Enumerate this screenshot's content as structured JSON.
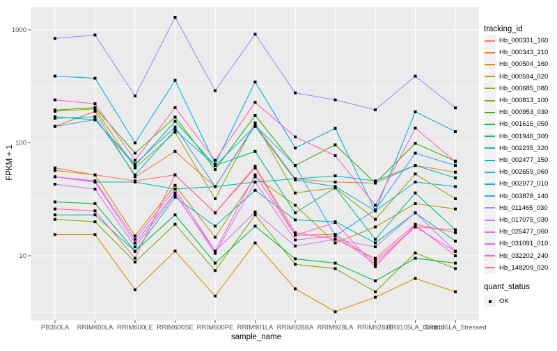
{
  "chart_data": {
    "type": "line",
    "title": "",
    "xlabel": "sample_name",
    "ylabel": "FPKM + 1",
    "y_scale": "log10",
    "y_ticks": [
      10,
      100,
      1000
    ],
    "y_minor_gridlines": [
      3.1623,
      31.623,
      316.23
    ],
    "ylim": [
      3,
      1400
    ],
    "grid": "on",
    "panel_bg": "#EBEBEB",
    "gridline_color": "#FFFFFF",
    "tick_label_color": "#4D4D4D",
    "point_color": "#000000",
    "legend_position": "right",
    "categories": [
      "PB350LA",
      "RRIM600LA",
      "RRIM600LE",
      "RRIM600SE",
      "RRIM600PE",
      "RRIM901LA",
      "RRIM928BA",
      "RRIM928LA",
      "RRIM928LE",
      "RRII105LA_Control",
      "RRII105LA_Stressed"
    ],
    "series": [
      {
        "name": "Hb_000331_160",
        "color": "#F8766D",
        "values": [
          60,
          52,
          46,
          52,
          24,
          60,
          15.2,
          15.5,
          9,
          18,
          17
        ]
      },
      {
        "name": "Hb_000343_210",
        "color": "#EA8331",
        "values": [
          140,
          190,
          50,
          84,
          41,
          145,
          48,
          45,
          44,
          63,
          55
        ]
      },
      {
        "name": "Hb_000504_160",
        "color": "#D89000",
        "values": [
          15.4,
          15.4,
          5,
          11,
          4.4,
          13,
          5.1,
          3.2,
          4.3,
          6.3,
          4.8
        ]
      },
      {
        "name": "Hb_000594_020",
        "color": "#C09B00",
        "values": [
          57,
          52,
          15,
          42,
          14.6,
          50,
          28,
          13,
          18,
          29,
          26
        ]
      },
      {
        "name": "Hb_000685_080",
        "color": "#A3A500",
        "values": [
          190,
          200,
          60,
          124,
          32,
          150,
          36,
          40,
          21,
          53,
          32
        ]
      },
      {
        "name": "Hb_000813_100",
        "color": "#7CAE00",
        "values": [
          21,
          20,
          8.8,
          19,
          7.4,
          23,
          8.4,
          7.7,
          4.8,
          10.6,
          7.7
        ]
      },
      {
        "name": "Hb_000953_030",
        "color": "#39B600",
        "values": [
          195,
          205,
          81,
          169,
          58,
          175,
          63,
          96,
          44,
          99,
          69
        ]
      },
      {
        "name": "Hb_001616_050",
        "color": "#00BB4E",
        "values": [
          30,
          29,
          11,
          23,
          8.6,
          18.3,
          9.4,
          8.6,
          6,
          9.5,
          8.6
        ]
      },
      {
        "name": "Hb_001946_300",
        "color": "#00C087",
        "values": [
          170,
          160,
          63,
          155,
          63,
          84,
          24,
          40,
          14,
          36,
          17
        ]
      },
      {
        "name": "Hb_002235_320",
        "color": "#00C0B2",
        "values": [
          23,
          23,
          10.9,
          33,
          18.3,
          38,
          20.8,
          20,
          13,
          24,
          13.5
        ]
      },
      {
        "name": "Hb_002477_150",
        "color": "#00BFC4",
        "values": [
          50,
          45,
          45,
          39,
          41,
          45,
          48,
          51,
          46,
          63,
          49
        ]
      },
      {
        "name": "Hb_002659_060",
        "color": "#00BAE0",
        "values": [
          165,
          170,
          52,
          130,
          63,
          140,
          47,
          41,
          25,
          45,
          41
        ]
      },
      {
        "name": "Hb_002977_010",
        "color": "#00B0F6",
        "values": [
          390,
          373,
          100,
          357,
          65,
          346,
          90,
          134,
          25,
          188,
          126
        ]
      },
      {
        "name": "Hb_003878_140",
        "color": "#35A2FF",
        "values": [
          140,
          160,
          65,
          138,
          41,
          143,
          63,
          15,
          25.5,
          81,
          63
        ]
      },
      {
        "name": "Hb_011465_030",
        "color": "#9590FF",
        "values": [
          840,
          900,
          260,
          1290,
          290,
          916,
          277,
          240,
          196,
          389,
          204
        ]
      },
      {
        "name": "Hb_017075_030",
        "color": "#C77CFF",
        "values": [
          43,
          39,
          12,
          35,
          11,
          24.4,
          12.2,
          14,
          12,
          24,
          11
        ]
      },
      {
        "name": "Hb_025477_060",
        "color": "#E76BF3",
        "values": [
          50,
          45,
          13,
          36,
          10.5,
          45,
          13.8,
          15,
          8.5,
          18,
          10.9
        ]
      },
      {
        "name": "Hb_031091_010",
        "color": "#FA62DB",
        "values": [
          50,
          46,
          14,
          39,
          11,
          52,
          15.2,
          19.7,
          8,
          18.7,
          10
        ]
      },
      {
        "name": "Hb_032202_240",
        "color": "#FF62BC",
        "values": [
          240,
          222,
          70,
          205,
          70,
          228,
          113,
          77,
          28,
          135,
          68
        ]
      },
      {
        "name": "Hb_148209_020",
        "color": "#FF6A98",
        "values": [
          26,
          25,
          9.5,
          52,
          24,
          62,
          16,
          14,
          9.5,
          19,
          16
        ]
      }
    ]
  },
  "legend": {
    "tracking_title": "tracking_id",
    "quant_title": "quant_status",
    "quant_items": [
      {
        "label": "OK",
        "shape": "square",
        "color": "#000000"
      }
    ]
  }
}
